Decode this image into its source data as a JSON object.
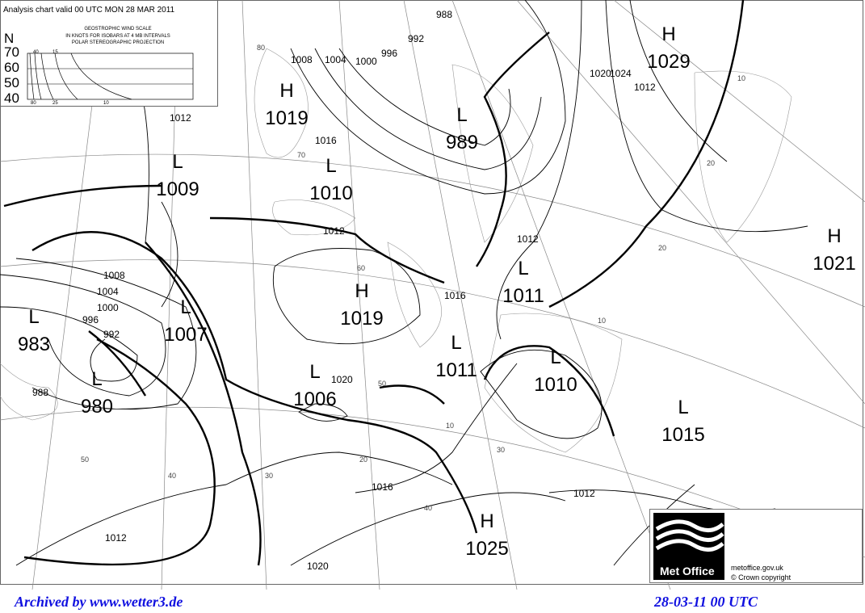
{
  "header": {
    "title": "Analysis chart valid 00 UTC MON 28 MAR 2011",
    "scale_title": "GEOSTROPHIC WIND SCALE",
    "scale_line2": "IN KNOTS FOR ISOBARS AT  4 MB INTERVALS",
    "scale_line3": "POLAR STEREOGRAPHIC PROJECTION",
    "lat_axis": "N",
    "latitudes": [
      "70",
      "60",
      "50",
      "40"
    ],
    "top_ticks": [
      "40",
      "15"
    ],
    "bottom_ticks": [
      "80",
      "25",
      "10"
    ]
  },
  "pressure_centres": [
    {
      "type": "H",
      "value": "1029"
    },
    {
      "type": "H",
      "value": "1019"
    },
    {
      "type": "L",
      "value": "989"
    },
    {
      "type": "L",
      "value": "1009"
    },
    {
      "type": "L",
      "value": "1010"
    },
    {
      "type": "H",
      "value": "1021"
    },
    {
      "type": "L",
      "value": "1011"
    },
    {
      "type": "H",
      "value": "1019"
    },
    {
      "type": "L",
      "value": "983"
    },
    {
      "type": "L",
      "value": "1007"
    },
    {
      "type": "L",
      "value": "980"
    },
    {
      "type": "L",
      "value": "1011"
    },
    {
      "type": "L",
      "value": "1010"
    },
    {
      "type": "L",
      "value": "1006"
    },
    {
      "type": "L",
      "value": "1015"
    },
    {
      "type": "H",
      "value": "1025"
    }
  ],
  "isobar_labels": [
    "988",
    "992",
    "996",
    "1000",
    "1004",
    "1008",
    "1012",
    "1016",
    "1020",
    "1024",
    "1012",
    "1008",
    "1004",
    "1000",
    "996",
    "992",
    "988",
    "1012",
    "1016",
    "1012",
    "1020",
    "1016",
    "1012",
    "1020",
    "1012"
  ],
  "grid_labels": [
    "80",
    "70",
    "60",
    "50",
    "40",
    "30",
    "20",
    "10",
    "50",
    "40",
    "30",
    "20",
    "10",
    "20",
    "10"
  ],
  "logo": {
    "brand": "Met Office",
    "url": "metoffice.gov.uk",
    "copyright": "©  Crown copyright"
  },
  "footer": {
    "left": "Archived by www.wetter3.de",
    "right": "28-03-11 00 UTC"
  }
}
